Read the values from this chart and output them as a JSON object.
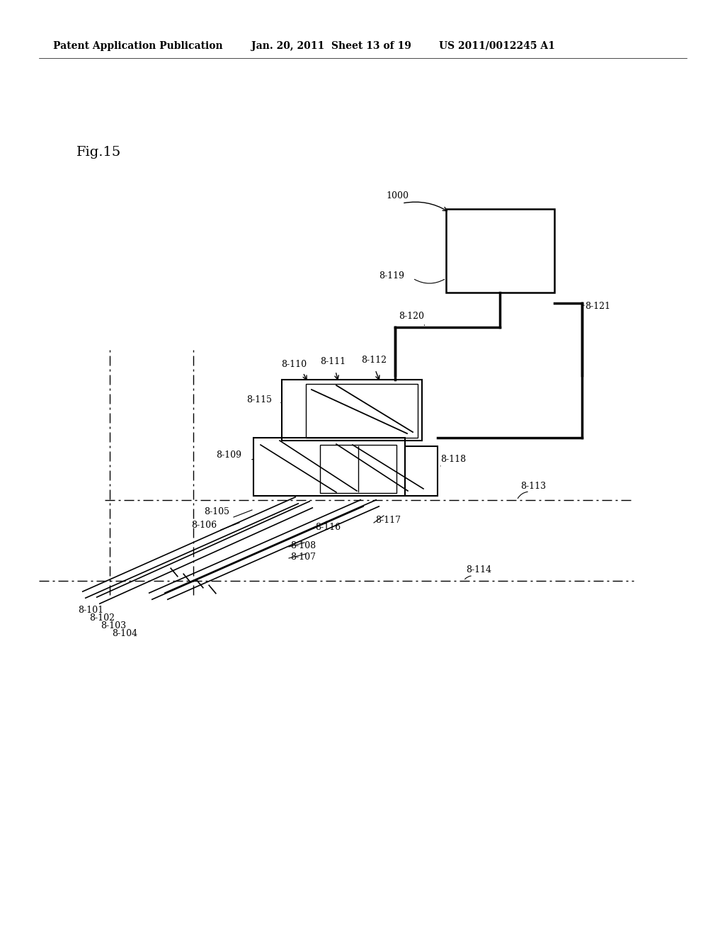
{
  "bg_color": "#ffffff",
  "header_left": "Patent Application Publication",
  "header_mid": "Jan. 20, 2011  Sheet 13 of 19",
  "header_right": "US 2011/0012245 A1",
  "fig_label": "Fig.15",
  "header_fontsize": 10,
  "fig_label_fontsize": 14
}
